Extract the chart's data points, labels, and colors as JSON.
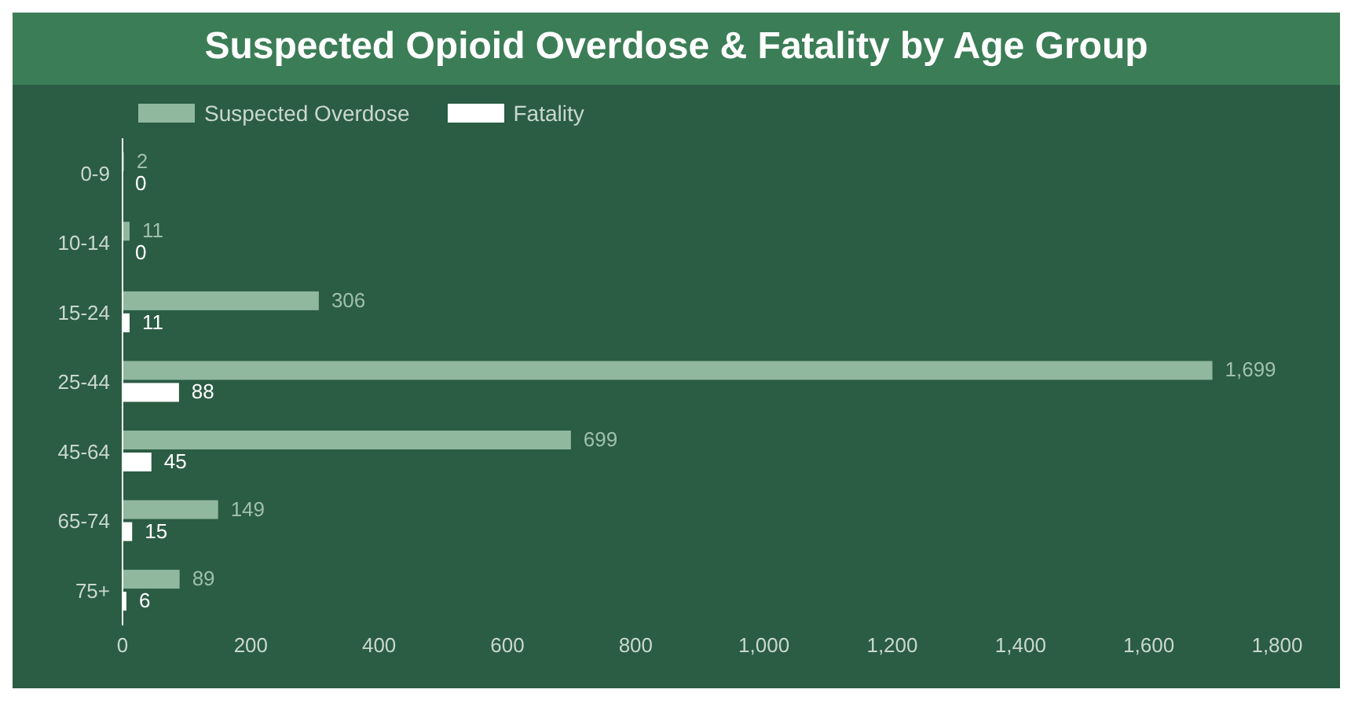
{
  "chart_data": {
    "type": "bar",
    "orientation": "horizontal",
    "title": "Suspected Opioid Overdose & Fatality by Age Group",
    "categories": [
      "0-9",
      "10-14",
      "15-24",
      "25-44",
      "45-64",
      "65-74",
      "75+"
    ],
    "series": [
      {
        "name": "Suspected Overdose",
        "color": "#8fb89e",
        "values": [
          2,
          11,
          306,
          1699,
          699,
          149,
          89
        ],
        "value_labels": [
          "2",
          "11",
          "306",
          "1,699",
          "699",
          "149",
          "89"
        ]
      },
      {
        "name": "Fatality",
        "color": "#ffffff",
        "values": [
          0,
          0,
          11,
          88,
          45,
          15,
          6
        ],
        "value_labels": [
          "0",
          "0",
          "11",
          "88",
          "45",
          "15",
          "6"
        ]
      }
    ],
    "xlim": [
      0,
      1800
    ],
    "xticks": [
      0,
      200,
      400,
      600,
      800,
      {
        "value": 1000,
        "label": "1,000"
      },
      {
        "value": 1200,
        "label": "1,200"
      },
      {
        "value": 1400,
        "label": "1,400"
      },
      {
        "value": 1600,
        "label": "1,600"
      },
      {
        "value": 1800,
        "label": "1,800"
      }
    ],
    "grid": false,
    "legend": "top left"
  }
}
